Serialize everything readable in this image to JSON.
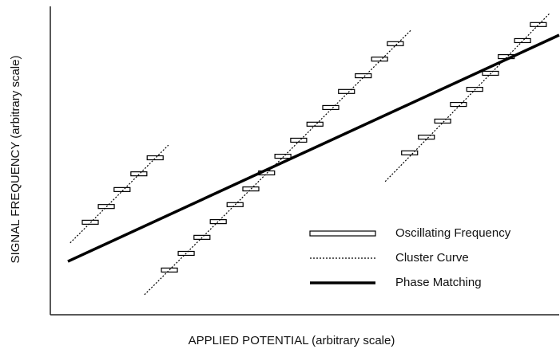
{
  "chart_data": {
    "type": "line",
    "xlabel": "APPLIED POTENTIAL  (arbitrary scale)",
    "ylabel": "SIGNAL FREQUENCY  (arbitrary scale)",
    "xlim": [
      0,
      100
    ],
    "ylim": [
      0,
      100
    ],
    "legend": "lower right",
    "series": [
      {
        "name": "Oscillating Frequency",
        "style": "marker",
        "color": "#000000",
        "x": [
          7.85,
          11.0,
          14.1,
          17.4,
          20.6,
          23.4,
          26.7,
          29.8,
          33.0,
          36.3,
          39.4,
          42.5,
          45.7,
          48.8,
          52.0,
          55.1,
          58.2,
          61.5,
          64.7,
          67.8,
          70.6,
          73.9,
          77.1,
          80.2,
          83.4,
          86.5,
          89.6,
          92.8,
          95.9
        ],
        "values": [
          30.0,
          35.1,
          40.6,
          45.7,
          50.9,
          14.5,
          19.9,
          25.1,
          30.2,
          35.7,
          40.8,
          46.0,
          51.4,
          56.6,
          61.8,
          67.2,
          72.4,
          77.5,
          82.9,
          87.9,
          52.5,
          57.6,
          62.8,
          68.2,
          73.1,
          78.3,
          83.7,
          88.9,
          94.1
        ]
      },
      {
        "name": "Cluster Curve",
        "style": "dotted",
        "color": "#000000",
        "x": [
          3.9,
          23.2,
          null,
          18.5,
          71.0,
          null,
          65.8,
          98.1
        ],
        "values": [
          23.3,
          55.0,
          null,
          6.5,
          92.5,
          null,
          43.2,
          97.7
        ]
      },
      {
        "name": "Phase Matching",
        "style": "solid",
        "color": "#000000",
        "x": [
          3.45,
          100
        ],
        "values": [
          17.3,
          90.7
        ]
      }
    ]
  }
}
